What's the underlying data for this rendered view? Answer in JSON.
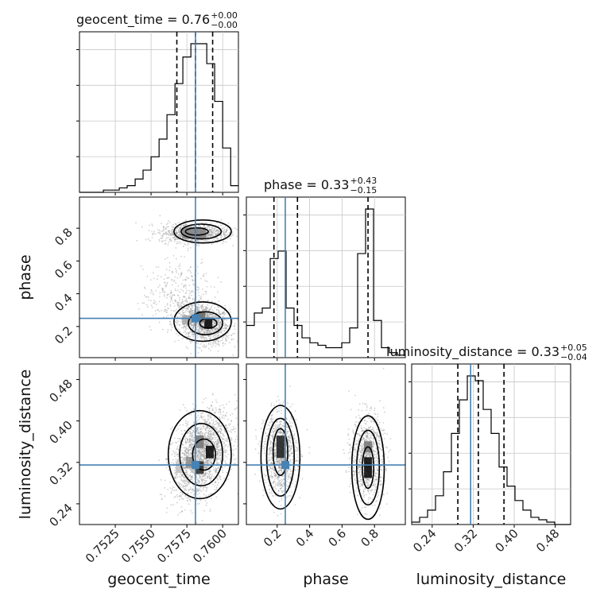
{
  "chart_data": {
    "type": "corner",
    "parameters": [
      "geocent_time",
      "phase",
      "luminosity_distance"
    ],
    "truths": {
      "geocent_time": 0.7581,
      "phase": 0.25,
      "luminosity_distance": 0.315
    },
    "titles": [
      {
        "param": "geocent_time",
        "text": "geocent_time = 0.76",
        "plus": "+0.00",
        "minus": "−0.00"
      },
      {
        "param": "phase",
        "text": "phase = 0.33",
        "plus": "+0.43",
        "minus": "−0.15"
      },
      {
        "param": "luminosity_distance",
        "text": "luminosity_distance = 0.33",
        "plus": "+0.05",
        "minus": "−0.04"
      }
    ],
    "ranges": {
      "geocent_time": [
        0.75,
        0.7611
      ],
      "phase": [
        0.01,
        0.99
      ],
      "luminosity_distance": [
        0.2,
        0.51
      ]
    },
    "ticks": {
      "geocent_time": [
        "0.7525",
        "0.7550",
        "0.7575",
        "0.7600"
      ],
      "phase": [
        "0.2",
        "0.4",
        "0.6",
        "0.8"
      ],
      "luminosity_distance": [
        "0.24",
        "0.32",
        "0.40",
        "0.48"
      ]
    },
    "quantiles": {
      "geocent_time": [
        0.7568,
        0.7581,
        0.7593
      ],
      "phase": [
        0.18,
        0.325,
        0.76
      ],
      "luminosity_distance": [
        0.29,
        0.33,
        0.38
      ]
    },
    "histograms": {
      "geocent_time": {
        "edges": [
          0.75,
          0.75056,
          0.75111,
          0.75167,
          0.75222,
          0.75278,
          0.75333,
          0.75389,
          0.75444,
          0.755,
          0.75556,
          0.75611,
          0.75667,
          0.75722,
          0.75778,
          0.75833,
          0.75889,
          0.75944,
          0.76,
          0.76056,
          0.7611
        ],
        "counts": [
          0,
          0,
          0,
          1,
          1,
          2,
          3,
          6,
          10,
          16,
          24,
          35,
          49,
          61,
          67,
          67,
          58,
          41,
          20,
          3
        ]
      },
      "phase": {
        "edges": [
          0.01,
          0.059,
          0.108,
          0.157,
          0.206,
          0.255,
          0.304,
          0.353,
          0.402,
          0.451,
          0.5,
          0.549,
          0.598,
          0.647,
          0.696,
          0.745,
          0.794,
          0.843,
          0.892,
          0.941,
          0.99
        ],
        "counts": [
          13,
          18,
          20,
          40,
          43,
          20,
          13,
          8,
          6,
          5,
          4,
          4,
          6,
          12,
          42,
          60,
          15,
          4,
          2,
          1
        ]
      },
      "luminosity_distance": {
        "edges": [
          0.2,
          0.2155,
          0.231,
          0.2465,
          0.262,
          0.2775,
          0.293,
          0.3085,
          0.324,
          0.3395,
          0.355,
          0.3705,
          0.386,
          0.4015,
          0.417,
          0.4325,
          0.448,
          0.4635,
          0.479,
          0.4945,
          0.51
        ],
        "counts": [
          1,
          3,
          6,
          12,
          22,
          38,
          52,
          62,
          60,
          48,
          38,
          24,
          16,
          10,
          6,
          3,
          2,
          1,
          0,
          0
        ]
      }
    },
    "grid": true
  }
}
